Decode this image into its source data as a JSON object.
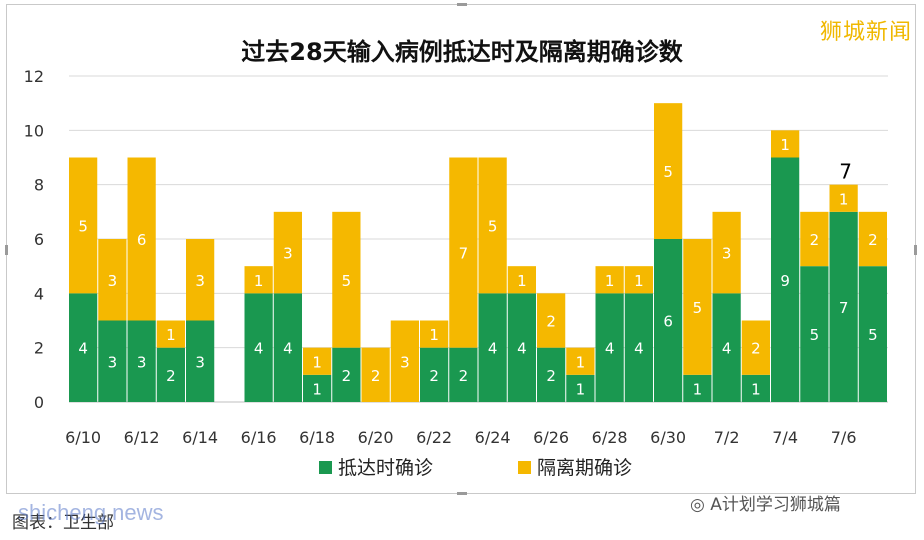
{
  "brand": "狮城新闻",
  "footer": {
    "source": "图表：卫生部",
    "wechat": "A计划学习狮城篇",
    "watermark": "shicheng.news"
  },
  "colors": {
    "arrival": "#1a9850",
    "quarantine": "#f5b800",
    "grid": "#d9d9d9"
  },
  "chart_data": {
    "type": "bar",
    "stacked": true,
    "title": "过去28天输入病例抵达时及隔离期确诊数",
    "categories": [
      "6/10",
      "6/11",
      "6/12",
      "6/13",
      "6/14",
      "6/15",
      "6/16",
      "6/17",
      "6/18",
      "6/19",
      "6/20",
      "6/21",
      "6/22",
      "6/23",
      "6/24",
      "6/25",
      "6/26",
      "6/27",
      "6/28",
      "6/29",
      "6/30",
      "7/1",
      "7/2",
      "7/3",
      "7/4",
      "7/5",
      "7/6",
      "7/7"
    ],
    "tick_labels": [
      "6/10",
      "6/12",
      "6/14",
      "6/16",
      "6/18",
      "6/20",
      "6/22",
      "6/24",
      "6/26",
      "6/28",
      "6/30",
      "7/2",
      "7/4",
      "7/6"
    ],
    "series": [
      {
        "name": "抵达时确诊",
        "color": "#1a9850",
        "values": [
          4,
          3,
          3,
          2,
          3,
          0,
          4,
          4,
          1,
          2,
          0,
          0,
          2,
          2,
          4,
          4,
          2,
          1,
          4,
          4,
          6,
          1,
          4,
          1,
          9,
          5,
          7,
          5
        ]
      },
      {
        "name": "隔离期确诊",
        "color": "#f5b800",
        "values": [
          5,
          3,
          6,
          1,
          3,
          0,
          1,
          3,
          1,
          5,
          2,
          3,
          1,
          7,
          5,
          1,
          2,
          1,
          1,
          1,
          5,
          5,
          3,
          2,
          1,
          2,
          1,
          2
        ]
      }
    ],
    "annotation": {
      "category": "7/6",
      "text": "7"
    },
    "ylim": [
      0,
      12
    ],
    "yticks": [
      0,
      2,
      4,
      6,
      8,
      10,
      12
    ],
    "grid": true,
    "legend_position": "bottom"
  }
}
